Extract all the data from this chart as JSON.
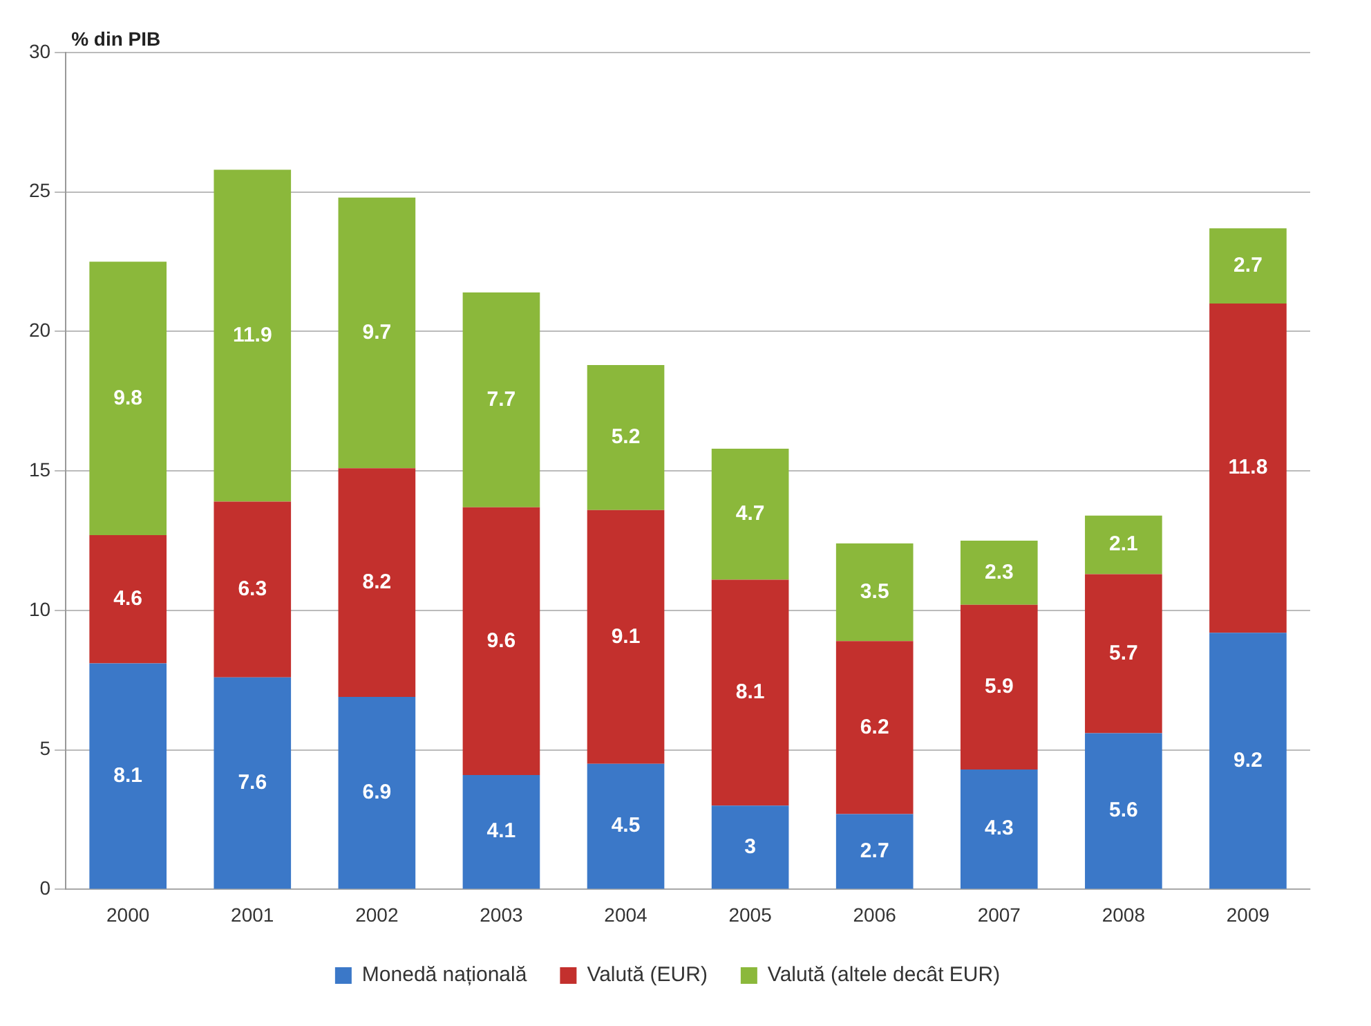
{
  "chart_data": {
    "type": "bar",
    "stacked": true,
    "ylabel": "% din PIB",
    "categories": [
      "2000",
      "2001",
      "2002",
      "2003",
      "2004",
      "2005",
      "2006",
      "2007",
      "2008",
      "2009"
    ],
    "series": [
      {
        "name": "Monedă națională",
        "color": "#3b78c8",
        "values": [
          8.1,
          7.6,
          6.9,
          4.1,
          4.5,
          3,
          2.7,
          4.3,
          5.6,
          9.2
        ]
      },
      {
        "name": "Valută (EUR)",
        "color": "#c3302d",
        "values": [
          4.6,
          6.3,
          8.2,
          9.6,
          9.1,
          8.1,
          6.2,
          5.9,
          5.7,
          11.8
        ]
      },
      {
        "name": "Valută (altele decât EUR)",
        "color": "#8bb83b",
        "values": [
          9.8,
          11.9,
          9.7,
          7.7,
          5.2,
          4.7,
          3.5,
          2.3,
          2.1,
          2.7
        ]
      }
    ],
    "ylim": [
      0,
      30
    ],
    "yticks": [
      0,
      5,
      10,
      15,
      20,
      25,
      30
    ],
    "grid": "y",
    "legend": "bottom",
    "data_labels": true
  }
}
